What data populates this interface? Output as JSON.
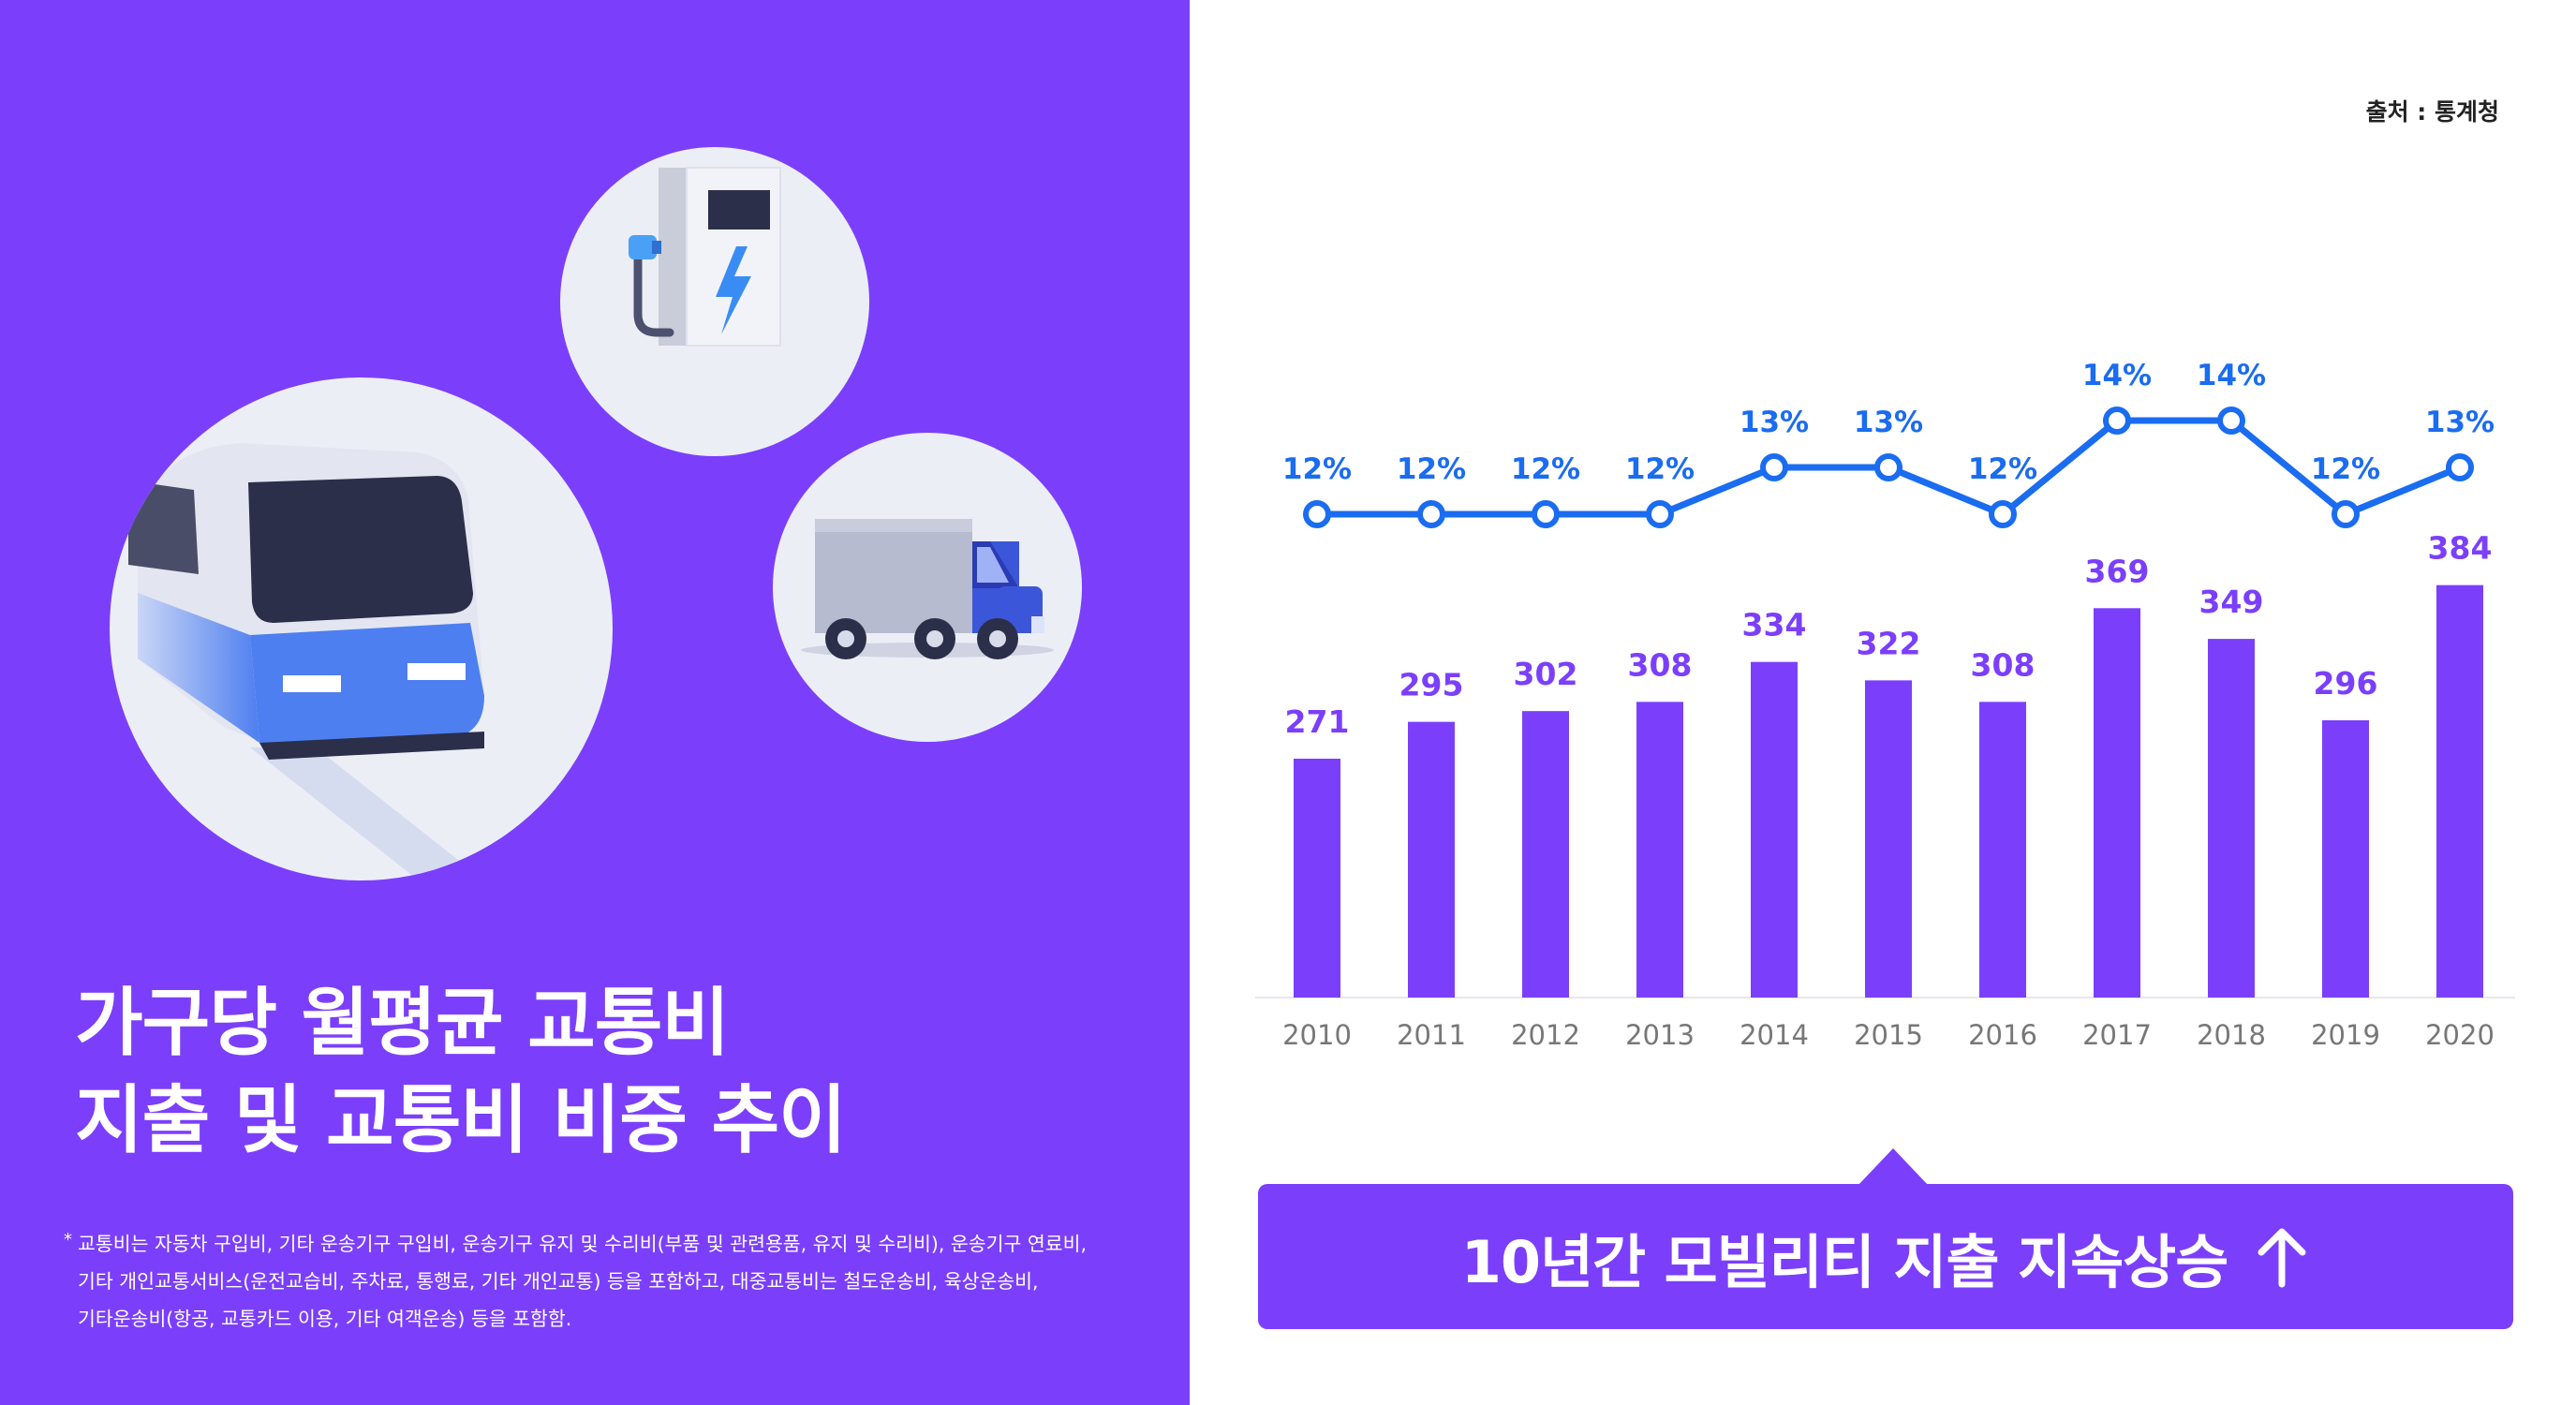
{
  "left_panel": {
    "title_line1": "가구당 월평균 교통비",
    "title_line2": "지출 및 교통비 비중 추이",
    "footnote_mark": "*",
    "footnote_lines": [
      "교통비는 자동차 구입비, 기타 운송기구 구입비, 운송기구 유지 및 수리비(부품 및 관련용품, 유지 및 수리비), 운송기구 연료비,",
      "기타 개인교통서비스(운전교습비, 주차료, 통행료, 기타 개인교통) 등을 포함하고, 대중교통비는 철도운송비, 육상운송비,",
      "기타운송비(항공, 교통카드 이용, 기타 여객운송) 등을 포함함."
    ],
    "icons": [
      "ev-charger-icon",
      "truck-icon",
      "train-icon"
    ]
  },
  "source": "출처 : 통계청",
  "banner": {
    "text": "10년간 모빌리티 지출 지속상승",
    "icon": "arrow-up-icon"
  },
  "colors": {
    "accent": "#7b3ffc",
    "line": "#1a6cf0",
    "axis_text": "#777777",
    "circle_bg": "#eceef6"
  },
  "chart_data": {
    "type": "bar+line",
    "categories": [
      "2010",
      "2011",
      "2012",
      "2013",
      "2014",
      "2015",
      "2016",
      "2017",
      "2018",
      "2019",
      "2020"
    ],
    "series": [
      {
        "type": "bar",
        "values": [
          271,
          295,
          302,
          308,
          334,
          322,
          308,
          369,
          349,
          296,
          384
        ],
        "color": "#7b3ffc"
      },
      {
        "type": "line",
        "values": [
          12,
          12,
          12,
          12,
          13,
          13,
          12,
          14,
          14,
          12,
          13
        ],
        "value_labels": [
          "12%",
          "12%",
          "12%",
          "12%",
          "13%",
          "13%",
          "12%",
          "14%",
          "14%",
          "12%",
          "13%"
        ],
        "color": "#1a6cf0"
      }
    ],
    "grid": false,
    "legend": "none"
  }
}
